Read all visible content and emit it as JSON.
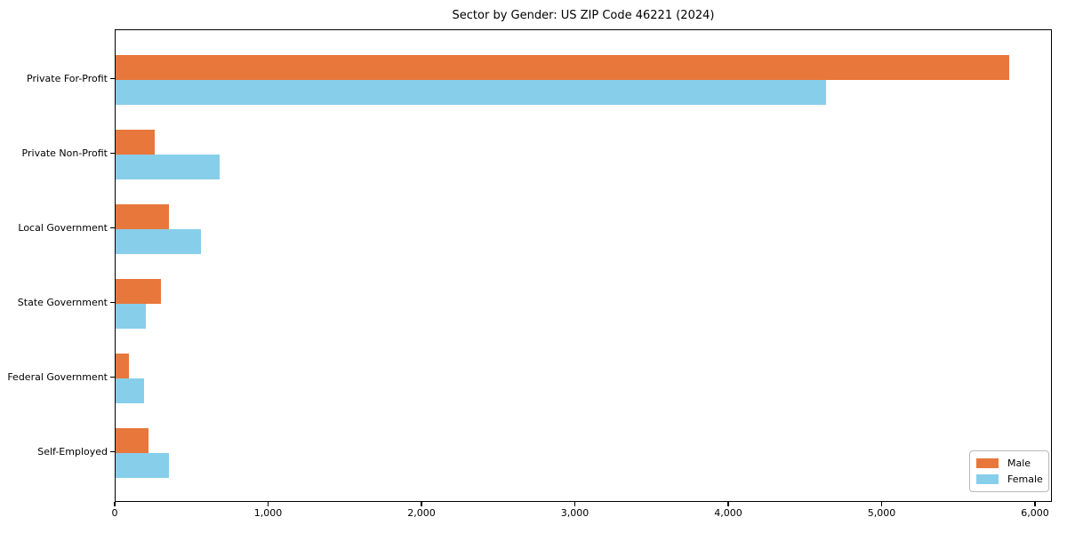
{
  "chart_data": {
    "type": "bar",
    "orientation": "horizontal",
    "title": "Sector by Gender: US ZIP Code 46221 (2024)",
    "categories": [
      "Private For-Profit",
      "Private Non-Profit",
      "Local Government",
      "State Government",
      "Federal Government",
      "Self-Employed"
    ],
    "series": [
      {
        "name": "Male",
        "color": "#e8773b",
        "values": [
          5825,
          255,
          350,
          298,
          88,
          215
        ]
      },
      {
        "name": "Female",
        "color": "#87ceeb",
        "values": [
          4630,
          680,
          556,
          195,
          185,
          345
        ]
      }
    ],
    "xlabel": "",
    "ylabel": "",
    "xlim": [
      0,
      6110
    ],
    "xticks": [
      0,
      1000,
      2000,
      3000,
      4000,
      5000,
      6000
    ],
    "xtick_labels": [
      "0",
      "1,000",
      "2,000",
      "3,000",
      "4,000",
      "5,000",
      "6,000"
    ],
    "legend_position": "lower-right",
    "grid": false,
    "axis_color": "#000000",
    "background_color": "#ffffff"
  }
}
